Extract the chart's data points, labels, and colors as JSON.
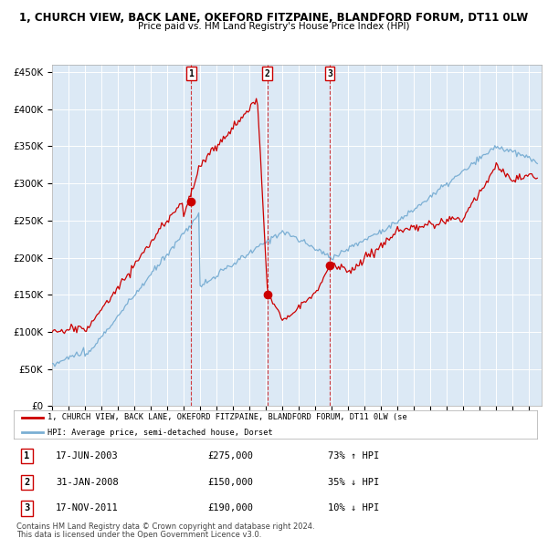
{
  "title1": "1, CHURCH VIEW, BACK LANE, OKEFORD FITZPAINE, BLANDFORD FORUM, DT11 0LW",
  "title2": "Price paid vs. HM Land Registry's House Price Index (HPI)",
  "ylabel_ticks": [
    "£0",
    "£50K",
    "£100K",
    "£150K",
    "£200K",
    "£250K",
    "£300K",
    "£350K",
    "£400K",
    "£450K"
  ],
  "ytick_values": [
    0,
    50000,
    100000,
    150000,
    200000,
    250000,
    300000,
    350000,
    400000,
    450000
  ],
  "ylim": [
    0,
    460000
  ],
  "sale1": {
    "date_idx": 2003.46,
    "price": 275000,
    "label": "1"
  },
  "sale2": {
    "date_idx": 2008.08,
    "price": 150000,
    "label": "2"
  },
  "sale3": {
    "date_idx": 2011.88,
    "price": 190000,
    "label": "3"
  },
  "red_line_label": "1, CHURCH VIEW, BACK LANE, OKEFORD FITZPAINE, BLANDFORD FORUM, DT11 0LW (se",
  "blue_line_label": "HPI: Average price, semi-detached house, Dorset",
  "table_rows": [
    {
      "num": "1",
      "date": "17-JUN-2003",
      "price": "£275,000",
      "change": "73% ↑ HPI"
    },
    {
      "num": "2",
      "date": "31-JAN-2008",
      "price": "£150,000",
      "change": "35% ↓ HPI"
    },
    {
      "num": "3",
      "date": "17-NOV-2011",
      "price": "£190,000",
      "change": "10% ↓ HPI"
    }
  ],
  "footer1": "Contains HM Land Registry data © Crown copyright and database right 2024.",
  "footer2": "This data is licensed under the Open Government Licence v3.0.",
  "bg_color": "#dce9f5",
  "grid_color": "#ffffff",
  "red_color": "#cc0000",
  "blue_color": "#7bafd4"
}
